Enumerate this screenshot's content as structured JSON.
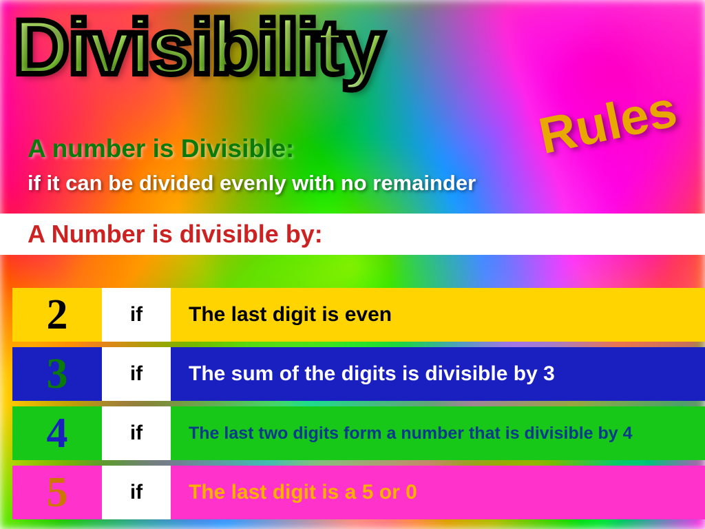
{
  "title": "Divisibility",
  "subtitle_word": "Rules",
  "definition_label": "A number is Divisible:",
  "definition_text": "if it can be divided evenly with no remainder",
  "table_header": "A Number is divisible by:",
  "if_label": "if",
  "colors": {
    "title_stroke": "#000000",
    "rules_color": "#e8a800",
    "def_label_color": "#0a7a0a",
    "def_text_color": "#ffffff",
    "header_bg": "#ffffff",
    "header_text": "#cc2222",
    "if_bg": "#ffffff"
  },
  "rows": [
    {
      "number": "2",
      "rule": "The last digit is even",
      "row_bg": "#ffd400",
      "num_color": "#000000",
      "rule_color": "#000000",
      "small": false
    },
    {
      "number": "3",
      "rule": "The sum of the digits is divisible by 3",
      "row_bg": "#1a1fbf",
      "num_color": "#0a7a0a",
      "rule_color": "#ffffff",
      "small": false
    },
    {
      "number": "4",
      "rule": "The last two digits form a number that is divisible by 4",
      "row_bg": "#18c818",
      "num_color": "#1a1fbf",
      "rule_color": "#0a3a8a",
      "small": true
    },
    {
      "number": "5",
      "rule": "The last digit is a 5 or 0",
      "row_bg": "#ff33cc",
      "num_color": "#cc7700",
      "rule_color": "#ffb000",
      "small": false
    }
  ]
}
